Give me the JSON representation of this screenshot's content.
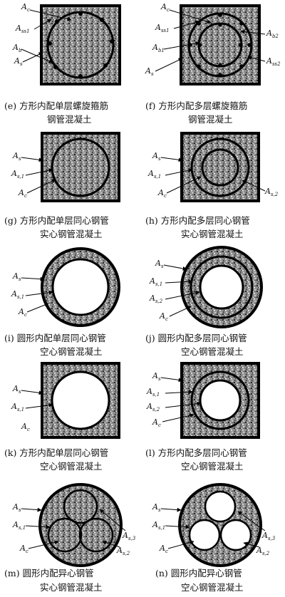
{
  "panels": [
    {
      "id": "e",
      "caption_line1": "(e) 方形内配单层螺旋箍筋",
      "caption_line2": "钢管混凝土",
      "labels": [
        {
          "base": "A",
          "sub": "c"
        },
        {
          "base": "A",
          "sub": "ss1"
        },
        {
          "base": "A",
          "sub": "b"
        },
        {
          "base": "A",
          "sub": "s"
        }
      ]
    },
    {
      "id": "f",
      "caption_line1": "(f) 方形内配多层螺旋箍筋",
      "caption_line2": "钢管混凝土",
      "labels": [
        {
          "base": "A",
          "sub": "c"
        },
        {
          "base": "A",
          "sub": "ss1"
        },
        {
          "base": "A",
          "sub": "b1"
        },
        {
          "base": "A",
          "sub": "s"
        },
        {
          "base": "A",
          "sub": "b2"
        },
        {
          "base": "A",
          "sub": "ss2"
        }
      ]
    },
    {
      "id": "g",
      "caption_line1": "(g) 方形内配单层同心钢管",
      "caption_line2": "实心钢管混凝土",
      "labels": [
        {
          "base": "A",
          "sub": "s"
        },
        {
          "base": "A",
          "sub": "s,1"
        },
        {
          "base": "A",
          "sub": "c"
        }
      ]
    },
    {
      "id": "h",
      "caption_line1": "(h) 方形内配多层同心钢管",
      "caption_line2": "实心钢管混凝土",
      "labels": [
        {
          "base": "A",
          "sub": "s"
        },
        {
          "base": "A",
          "sub": "s,1"
        },
        {
          "base": "A",
          "sub": "c"
        },
        {
          "base": "A",
          "sub": "s,2"
        }
      ]
    },
    {
      "id": "i",
      "caption_line1": "(i) 圆形内配单层同心钢管",
      "caption_line2": "空心钢管混凝土",
      "labels": [
        {
          "base": "A",
          "sub": "s"
        },
        {
          "base": "A",
          "sub": "s,1"
        },
        {
          "base": "A",
          "sub": "c"
        }
      ]
    },
    {
      "id": "j",
      "caption_line1": "(j) 圆形内配多层同心钢管",
      "caption_line2": "空心钢管混凝土",
      "labels": [
        {
          "base": "A",
          "sub": "s"
        },
        {
          "base": "A",
          "sub": "s,1"
        },
        {
          "base": "A",
          "sub": "s,2"
        },
        {
          "base": "A",
          "sub": "c"
        }
      ]
    },
    {
      "id": "k",
      "caption_line1": "(k) 方形内配单层同心钢管",
      "caption_line2": "空心钢管混凝土",
      "labels": [
        {
          "base": "A",
          "sub": "s"
        },
        {
          "base": "A",
          "sub": "s,1"
        },
        {
          "base": "A",
          "sub": "c"
        }
      ]
    },
    {
      "id": "l",
      "caption_line1": "(l) 方形内配多层同心钢管",
      "caption_line2": "空心钢管混凝土",
      "labels": [
        {
          "base": "A",
          "sub": "s"
        },
        {
          "base": "A",
          "sub": "s,1"
        },
        {
          "base": "A",
          "sub": "s,2"
        },
        {
          "base": "A",
          "sub": "c"
        }
      ]
    },
    {
      "id": "m",
      "caption_line1": "(m) 圆形内配异心钢管",
      "caption_line2": "实心钢管混凝土",
      "labels": [
        {
          "base": "A",
          "sub": "s"
        },
        {
          "base": "A",
          "sub": "s,1"
        },
        {
          "base": "A",
          "sub": "c"
        },
        {
          "base": "A",
          "sub": "s,3"
        },
        {
          "base": "A",
          "sub": "s,2"
        }
      ]
    },
    {
      "id": "n",
      "caption_line1": "(n) 圆形内配异心钢管",
      "caption_line2": "空心钢管混凝土",
      "labels": [
        {
          "base": "A",
          "sub": "s"
        },
        {
          "base": "A",
          "sub": "s,1"
        },
        {
          "base": "A",
          "sub": "c"
        },
        {
          "base": "A",
          "sub": "s,3"
        },
        {
          "base": "A",
          "sub": "s,2"
        }
      ]
    }
  ]
}
